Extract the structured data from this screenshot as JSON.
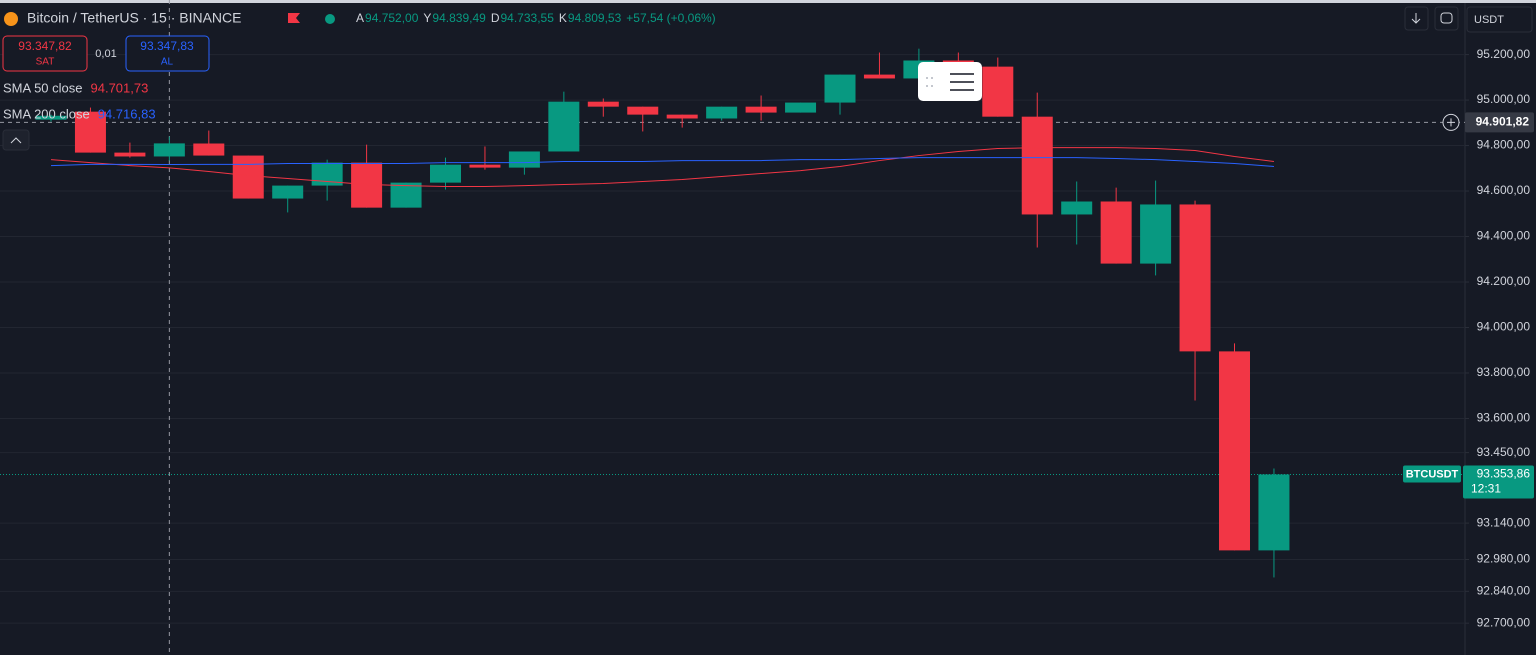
{
  "chart_data": {
    "type": "candlestick",
    "title": "Bitcoin / TetherUS · 15 · BINANCE",
    "ohlc_legend": [
      {
        "letter": "A",
        "value": "94.752,00"
      },
      {
        "letter": "Y",
        "value": "94.839,49"
      },
      {
        "letter": "D",
        "value": "94.733,55"
      },
      {
        "letter": "K",
        "value": "94.809,53"
      }
    ],
    "change": "+57,54 (+0,06%)",
    "sell": {
      "price": "93.347,82",
      "label": "SAT"
    },
    "spread": "0,01",
    "buy": {
      "price": "93.347,83",
      "label": "AL"
    },
    "currency": "USDT",
    "up_color": "#089981",
    "down_color": "#f23645",
    "open": [
      94914,
      94949,
      94769,
      94752,
      94809,
      94756,
      94567,
      94624,
      94725,
      94527,
      94637,
      94716,
      94703,
      94774,
      94993,
      94971,
      94936,
      94919,
      94971,
      94945,
      94989,
      95112,
      95095,
      95174,
      95147,
      94927,
      94497,
      94554,
      94281,
      94541,
      93895,
      93020
    ],
    "high": [
      94936,
      94967,
      94813,
      94839.49,
      94866,
      94756,
      94624,
      94738,
      94804,
      94637,
      94747,
      94796,
      94774,
      95037,
      95007,
      94971,
      94936,
      94971,
      95020,
      94989,
      95112,
      95209,
      95226,
      95209,
      95187,
      95033,
      94642,
      94615,
      94646,
      94558,
      93930,
      93380
    ],
    "low": [
      94905,
      94769,
      94747,
      94733.55,
      94756,
      94567,
      94506,
      94558,
      94527,
      94527,
      94607,
      94694,
      94672,
      94774,
      94927,
      94862,
      94879,
      94910,
      94910,
      94945,
      94936,
      95095,
      95095,
      95147,
      94927,
      94352,
      94365,
      94281,
      94229,
      93679,
      93020,
      92901
    ],
    "close": [
      94931,
      94769,
      94752,
      94809.53,
      94756,
      94567,
      94624,
      94725,
      94527,
      94637,
      94716,
      94703,
      94774,
      94993,
      94971,
      94936,
      94919,
      94971,
      94945,
      94989,
      95112,
      95095,
      95174,
      95147,
      94927,
      94497,
      94554,
      94281,
      94541,
      93895,
      93020,
      93353.86
    ],
    "series": [
      {
        "name": "SMA 50 close",
        "color": "#f23645",
        "legend_value": "94.701,73",
        "values": [
          94738,
          94725,
          94712,
          94701.73,
          94686,
          94668,
          94655,
          94642,
          94629,
          94624,
          94620,
          94620,
          94624,
          94629,
          94633,
          94642,
          94651,
          94664,
          94677,
          94690,
          94708,
          94734,
          94756,
          94774,
          94787,
          94791,
          94791,
          94791,
          94787,
          94778,
          94752,
          94730
        ]
      },
      {
        "name": "SMA 200 close",
        "color": "#2962ff",
        "legend_value": "94.716,83",
        "values": [
          94712,
          94717,
          94717,
          94716.83,
          94717,
          94717,
          94721,
          94721,
          94721,
          94721,
          94725,
          94725,
          94725,
          94730,
          94730,
          94730,
          94734,
          94734,
          94734,
          94738,
          94738,
          94743,
          94747,
          94747,
          94747,
          94747,
          94747,
          94743,
          94738,
          94730,
          94721,
          94708
        ]
      }
    ],
    "ylim": [
      92560,
      95440
    ],
    "yticks": [
      {
        "value": 95200,
        "label": "95.200,00"
      },
      {
        "value": 95000,
        "label": "95.000,00"
      },
      {
        "value": 94800,
        "label": "94.800,00"
      },
      {
        "value": 94600,
        "label": "94.600,00"
      },
      {
        "value": 94400,
        "label": "94.400,00"
      },
      {
        "value": 94200,
        "label": "94.200,00"
      },
      {
        "value": 94000,
        "label": "94.000,00"
      },
      {
        "value": 93800,
        "label": "93.800,00"
      },
      {
        "value": 93600,
        "label": "93.600,00"
      },
      {
        "value": 93450,
        "label": "93.450,00"
      },
      {
        "value": 93140,
        "label": "93.140,00"
      },
      {
        "value": 92980,
        "label": "92.980,00"
      },
      {
        "value": 92840,
        "label": "92.840,00"
      },
      {
        "value": 92700,
        "label": "92.700,00"
      }
    ],
    "grid": true,
    "crosshair": {
      "value": 94901.82,
      "label": "94.901,82",
      "index": 3
    },
    "last_price": {
      "value": 93353.86,
      "label": "93.353,86",
      "symbol": "BTCUSDT",
      "countdown": "12:31"
    }
  }
}
